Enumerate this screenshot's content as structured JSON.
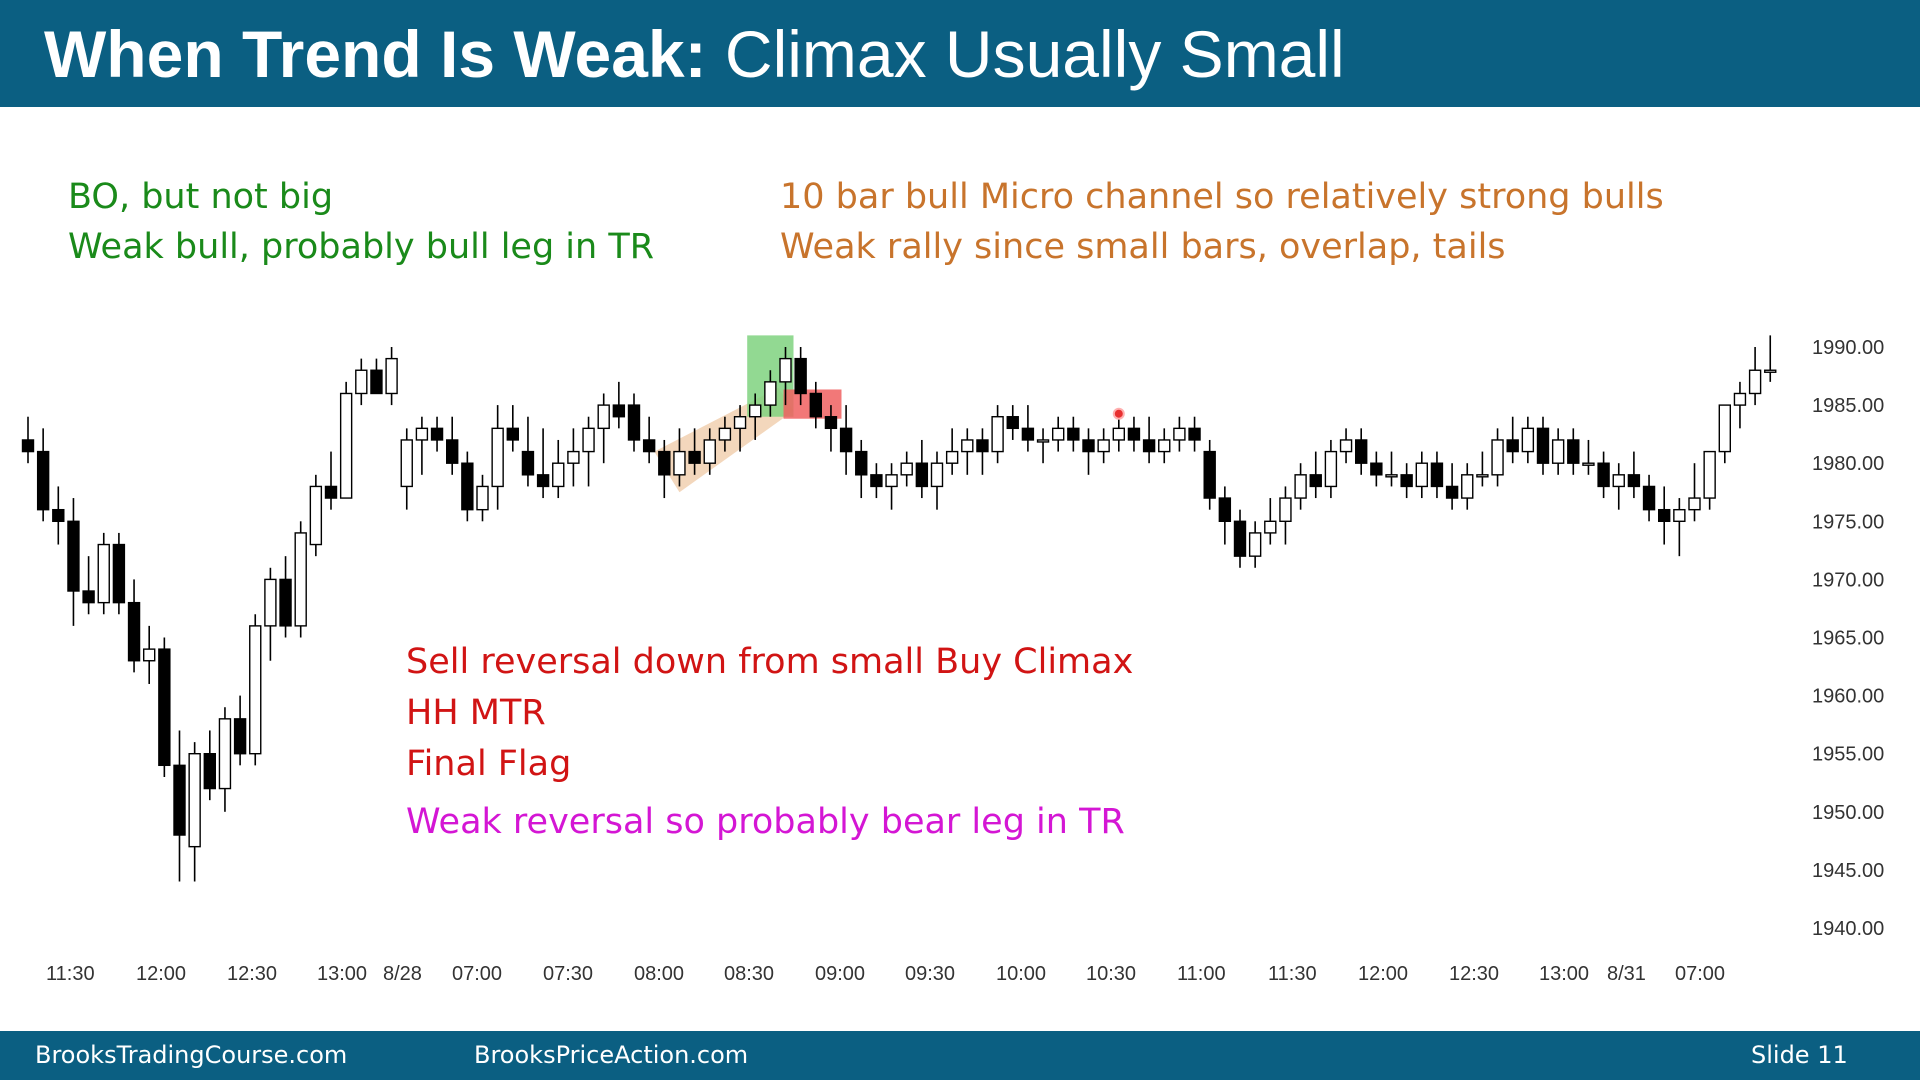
{
  "slide": {
    "title_bold": "When Trend Is Weak:",
    "title_rest": "Climax Usually Small"
  },
  "annotations": {
    "green": [
      "BO, but not big",
      "Weak bull, probably bull leg in TR"
    ],
    "orange": [
      "10 bar bull Micro channel so relatively strong bulls",
      "Weak rally since small bars, overlap, tails"
    ],
    "red": [
      "Sell reversal down from small Buy Climax",
      "HH MTR",
      "Final Flag"
    ],
    "magenta": [
      "Weak reversal so probably bear leg in TR"
    ]
  },
  "colors": {
    "header": "#0b5f82",
    "green_text": "#1a8a1a",
    "orange_text": "#c8742c",
    "red_text": "#d11414",
    "magenta_text": "#d416d4",
    "highlight_green": "#7fd27f",
    "highlight_red": "#f06060",
    "channel": "#efc9a6"
  },
  "footer": {
    "left": "BrooksTradingCourse.com",
    "middle": "BrooksPriceAction.com",
    "right": "Slide  11"
  },
  "chart_data": {
    "type": "candlestick",
    "y_ticks": [
      "1990.00",
      "1985.00",
      "1980.00",
      "1975.00",
      "1970.00",
      "1965.00",
      "1960.00",
      "1955.00",
      "1950.00",
      "1945.00",
      "1940.00"
    ],
    "ylim": [
      1940,
      1990
    ],
    "x_ticks": [
      "11:30",
      "12:00",
      "12:30",
      "13:00",
      "8/28",
      "07:00",
      "07:30",
      "08:00",
      "08:30",
      "09:00",
      "09:30",
      "10:00",
      "10:30",
      "11:00",
      "11:30",
      "12:00",
      "12:30",
      "13:00",
      "8/31",
      "07:00"
    ],
    "bars": [
      [
        1982,
        1984,
        1980,
        1981
      ],
      [
        1981,
        1983,
        1975,
        1976
      ],
      [
        1976,
        1978,
        1973,
        1975
      ],
      [
        1975,
        1977,
        1966,
        1969
      ],
      [
        1969,
        1972,
        1967,
        1968
      ],
      [
        1968,
        1974,
        1967,
        1973
      ],
      [
        1973,
        1974,
        1967,
        1968
      ],
      [
        1968,
        1970,
        1962,
        1963
      ],
      [
        1963,
        1966,
        1961,
        1964
      ],
      [
        1964,
        1965,
        1953,
        1954
      ],
      [
        1954,
        1957,
        1944,
        1948
      ],
      [
        1947,
        1956,
        1944,
        1955
      ],
      [
        1955,
        1957,
        1951,
        1952
      ],
      [
        1952,
        1959,
        1950,
        1958
      ],
      [
        1958,
        1960,
        1954,
        1955
      ],
      [
        1955,
        1967,
        1954,
        1966
      ],
      [
        1966,
        1971,
        1963,
        1970
      ],
      [
        1970,
        1972,
        1965,
        1966
      ],
      [
        1966,
        1975,
        1965,
        1974
      ],
      [
        1973,
        1979,
        1972,
        1978
      ],
      [
        1978,
        1981,
        1976,
        1977
      ],
      [
        1977,
        1987,
        1977,
        1986
      ],
      [
        1986,
        1989,
        1985,
        1988
      ],
      [
        1988,
        1989,
        1986,
        1986
      ],
      [
        1986,
        1990,
        1985,
        1989
      ],
      [
        1978,
        1983,
        1976,
        1982
      ],
      [
        1982,
        1984,
        1979,
        1983
      ],
      [
        1983,
        1984,
        1981,
        1982
      ],
      [
        1982,
        1984,
        1979,
        1980
      ],
      [
        1980,
        1981,
        1975,
        1976
      ],
      [
        1976,
        1979,
        1975,
        1978
      ],
      [
        1978,
        1985,
        1976,
        1983
      ],
      [
        1983,
        1985,
        1981,
        1982
      ],
      [
        1981,
        1984,
        1978,
        1979
      ],
      [
        1979,
        1983,
        1977,
        1978
      ],
      [
        1978,
        1982,
        1977,
        1980
      ],
      [
        1980,
        1983,
        1978,
        1981
      ],
      [
        1981,
        1984,
        1978,
        1983
      ],
      [
        1983,
        1986,
        1980,
        1985
      ],
      [
        1985,
        1987,
        1983,
        1984
      ],
      [
        1985,
        1986,
        1981,
        1982
      ],
      [
        1982,
        1984,
        1980,
        1981
      ],
      [
        1981,
        1982,
        1977,
        1979
      ],
      [
        1979,
        1983,
        1978,
        1981
      ],
      [
        1981,
        1983,
        1979,
        1980
      ],
      [
        1980,
        1983,
        1979,
        1982
      ],
      [
        1982,
        1984,
        1981,
        1983
      ],
      [
        1983,
        1985,
        1981,
        1984
      ],
      [
        1984,
        1986,
        1982,
        1985
      ],
      [
        1985,
        1988,
        1984,
        1987
      ],
      [
        1987,
        1990,
        1985,
        1989
      ],
      [
        1989,
        1990,
        1985,
        1986
      ],
      [
        1986,
        1987,
        1983,
        1984
      ],
      [
        1984,
        1985,
        1981,
        1983
      ],
      [
        1983,
        1985,
        1979,
        1981
      ],
      [
        1981,
        1982,
        1977,
        1979
      ],
      [
        1979,
        1980,
        1977,
        1978
      ],
      [
        1978,
        1980,
        1976,
        1979
      ],
      [
        1979,
        1981,
        1978,
        1980
      ],
      [
        1980,
        1982,
        1977,
        1978
      ],
      [
        1978,
        1981,
        1976,
        1980
      ],
      [
        1980,
        1983,
        1979,
        1981
      ],
      [
        1981,
        1983,
        1979,
        1982
      ],
      [
        1982,
        1983,
        1979,
        1981
      ],
      [
        1981,
        1985,
        1980,
        1984
      ],
      [
        1984,
        1985,
        1982,
        1983
      ],
      [
        1983,
        1985,
        1981,
        1982
      ],
      [
        1982,
        1983,
        1980,
        1982
      ],
      [
        1982,
        1984,
        1981,
        1983
      ],
      [
        1983,
        1984,
        1981,
        1982
      ],
      [
        1982,
        1983,
        1979,
        1981
      ],
      [
        1981,
        1983,
        1980,
        1982
      ],
      [
        1982,
        1984,
        1981,
        1983
      ],
      [
        1983,
        1984,
        1981,
        1982
      ],
      [
        1982,
        1984,
        1980,
        1981
      ],
      [
        1981,
        1983,
        1980,
        1982
      ],
      [
        1982,
        1984,
        1981,
        1983
      ],
      [
        1983,
        1984,
        1981,
        1982
      ],
      [
        1981,
        1982,
        1976,
        1977
      ],
      [
        1977,
        1978,
        1973,
        1975
      ],
      [
        1975,
        1976,
        1971,
        1972
      ],
      [
        1972,
        1975,
        1971,
        1974
      ],
      [
        1974,
        1977,
        1973,
        1975
      ],
      [
        1975,
        1978,
        1973,
        1977
      ],
      [
        1977,
        1980,
        1976,
        1979
      ],
      [
        1979,
        1981,
        1977,
        1978
      ],
      [
        1978,
        1982,
        1977,
        1981
      ],
      [
        1981,
        1983,
        1980,
        1982
      ],
      [
        1982,
        1983,
        1979,
        1980
      ],
      [
        1980,
        1981,
        1978,
        1979
      ],
      [
        1979,
        1981,
        1978,
        1979
      ],
      [
        1979,
        1980,
        1977,
        1978
      ],
      [
        1978,
        1981,
        1977,
        1980
      ],
      [
        1980,
        1981,
        1977,
        1978
      ],
      [
        1978,
        1980,
        1976,
        1977
      ],
      [
        1977,
        1980,
        1976,
        1979
      ],
      [
        1979,
        1981,
        1978,
        1979
      ],
      [
        1979,
        1983,
        1978,
        1982
      ],
      [
        1982,
        1984,
        1980,
        1981
      ],
      [
        1981,
        1984,
        1980,
        1983
      ],
      [
        1983,
        1984,
        1979,
        1980
      ],
      [
        1980,
        1983,
        1979,
        1982
      ],
      [
        1982,
        1983,
        1979,
        1980
      ],
      [
        1980,
        1982,
        1979,
        1980
      ],
      [
        1980,
        1981,
        1977,
        1978
      ],
      [
        1978,
        1980,
        1976,
        1979
      ],
      [
        1979,
        1981,
        1977,
        1978
      ],
      [
        1978,
        1979,
        1975,
        1976
      ],
      [
        1976,
        1978,
        1973,
        1975
      ],
      [
        1975,
        1977,
        1972,
        1976
      ],
      [
        1976,
        1980,
        1975,
        1977
      ],
      [
        1977,
        1981,
        1976,
        1981
      ],
      [
        1981,
        1985,
        1980,
        1985
      ],
      [
        1985,
        1987,
        1983,
        1986
      ],
      [
        1986,
        1990,
        1985,
        1988
      ],
      [
        1988,
        1991,
        1987,
        1988
      ]
    ],
    "highlights": {
      "green_box": [
        1984,
        1991
      ],
      "red_box": [
        1984,
        1986
      ]
    },
    "marker": {
      "bar_index": 72,
      "price": 1984
    }
  }
}
